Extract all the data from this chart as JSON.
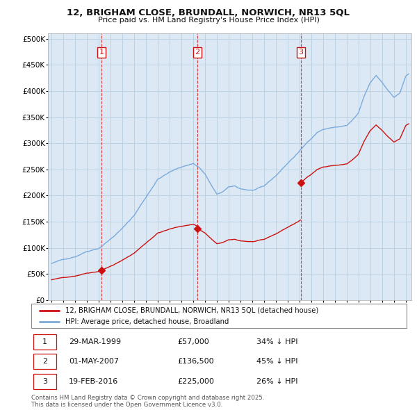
{
  "title_line1": "12, BRIGHAM CLOSE, BRUNDALL, NORWICH, NR13 5QL",
  "title_line2": "Price paid vs. HM Land Registry's House Price Index (HPI)",
  "background_color": "#ffffff",
  "plot_bg_color": "#dce9f5",
  "grid_color": "#b8cfe0",
  "hpi_color": "#7aaadc",
  "price_color": "#cc1111",
  "purchases": [
    {
      "date_num": 1999.24,
      "price": 57000,
      "label": "1"
    },
    {
      "date_num": 2007.33,
      "price": 136500,
      "label": "2"
    },
    {
      "date_num": 2016.13,
      "price": 225000,
      "label": "3"
    }
  ],
  "vline_dates": [
    1999.24,
    2007.33,
    2016.13
  ],
  "ylim": [
    0,
    510000
  ],
  "yticks": [
    0,
    50000,
    100000,
    150000,
    200000,
    250000,
    300000,
    350000,
    400000,
    450000,
    500000
  ],
  "ytick_labels": [
    "£0",
    "£50K",
    "£100K",
    "£150K",
    "£200K",
    "£250K",
    "£300K",
    "£350K",
    "£400K",
    "£450K",
    "£500K"
  ],
  "xlim_start": 1994.7,
  "xlim_end": 2025.5,
  "xtick_years": [
    1995,
    1996,
    1997,
    1998,
    1999,
    2000,
    2001,
    2002,
    2003,
    2004,
    2005,
    2006,
    2007,
    2008,
    2009,
    2010,
    2011,
    2012,
    2013,
    2014,
    2015,
    2016,
    2017,
    2018,
    2019,
    2020,
    2021,
    2022,
    2023,
    2024,
    2025
  ],
  "legend_items": [
    {
      "label": "12, BRIGHAM CLOSE, BRUNDALL, NORWICH, NR13 5QL (detached house)",
      "color": "#cc1111"
    },
    {
      "label": "HPI: Average price, detached house, Broadland",
      "color": "#7aaadc"
    }
  ],
  "table_rows": [
    {
      "num": "1",
      "date": "29-MAR-1999",
      "price": "£57,000",
      "change": "34% ↓ HPI"
    },
    {
      "num": "2",
      "date": "01-MAY-2007",
      "price": "£136,500",
      "change": "45% ↓ HPI"
    },
    {
      "num": "3",
      "date": "19-FEB-2016",
      "price": "£225,000",
      "change": "26% ↓ HPI"
    }
  ],
  "footer": "Contains HM Land Registry data © Crown copyright and database right 2025.\nThis data is licensed under the Open Government Licence v3.0."
}
